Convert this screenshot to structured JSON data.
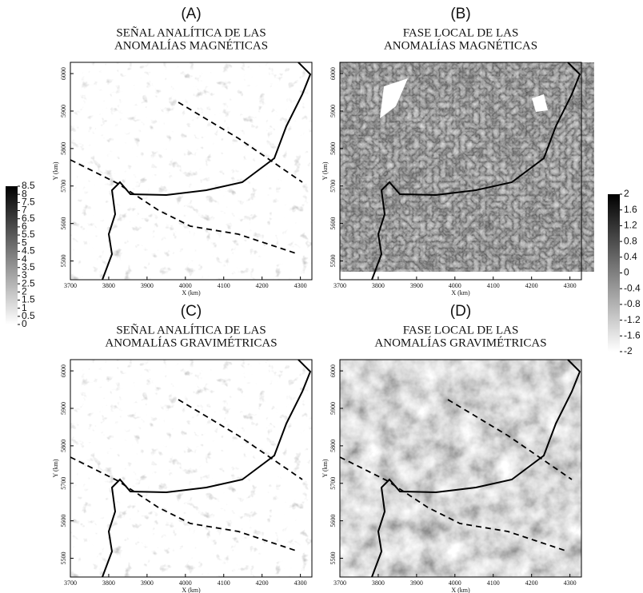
{
  "panels": [
    {
      "label": "(A)",
      "title": [
        "SEÑAL ANALÍTICA DE LAS",
        "ANOMALÍAS MAGNÉTICAS"
      ],
      "xlabel": "X (km)",
      "ylabel": "Y (km)",
      "xlim": [
        3700,
        4330
      ],
      "ylim": [
        5450,
        6030
      ],
      "xticks": [
        3700,
        3800,
        3900,
        4000,
        4100,
        4200,
        4300
      ],
      "yticks": [
        5500,
        5600,
        5700,
        5800,
        5900,
        6000
      ]
    },
    {
      "label": "(B)",
      "title": [
        "FASE LOCAL DE LAS",
        "ANOMALÍAS MAGNÉTICAS"
      ],
      "xlabel": "X (km)",
      "ylabel": "Y (km)",
      "xlim": [
        3700,
        4330
      ],
      "ylim": [
        5450,
        6030
      ],
      "xticks": [
        3700,
        3800,
        3900,
        4000,
        4100,
        4200,
        4300
      ],
      "yticks": [
        5500,
        5600,
        5700,
        5800,
        5900,
        6000
      ]
    },
    {
      "label": "(C)",
      "title": [
        "SEÑAL ANALÍTICA DE LAS",
        "ANOMALÍAS GRAVIMÉTRICAS"
      ],
      "xlabel": "X (km)",
      "ylabel": "Y (km)",
      "xlim": [
        3700,
        4330
      ],
      "ylim": [
        5450,
        6030
      ],
      "xticks": [
        3700,
        3800,
        3900,
        4000,
        4100,
        4200,
        4300
      ],
      "yticks": [
        5500,
        5600,
        5700,
        5800,
        5900,
        6000
      ]
    },
    {
      "label": "(D)",
      "title": [
        "FASE LOCAL DE LAS",
        "ANOMALÍAS GRAVIMÉTRICAS"
      ],
      "xlabel": "X (km)",
      "ylabel": "Y (km)",
      "xlim": [
        3700,
        4330
      ],
      "ylim": [
        5450,
        6030
      ],
      "xticks": [
        3700,
        3800,
        3900,
        4000,
        4100,
        4200,
        4300
      ],
      "yticks": [
        5500,
        5600,
        5700,
        5800,
        5900,
        6000
      ]
    }
  ],
  "colorbars": [
    {
      "lim": [
        0,
        8.5
      ],
      "ticks": [
        8.5,
        8,
        7.5,
        7,
        6.5,
        6,
        5.5,
        5,
        4.5,
        4,
        3.5,
        3,
        2.5,
        2,
        1.5,
        1,
        0.5,
        0
      ]
    },
    {
      "lim": [
        -2,
        2
      ],
      "ticks": [
        2,
        1.6,
        1.2,
        0.8,
        0.4,
        0,
        -0.4,
        -0.8,
        -1.2,
        -1.6,
        -2
      ]
    }
  ]
}
